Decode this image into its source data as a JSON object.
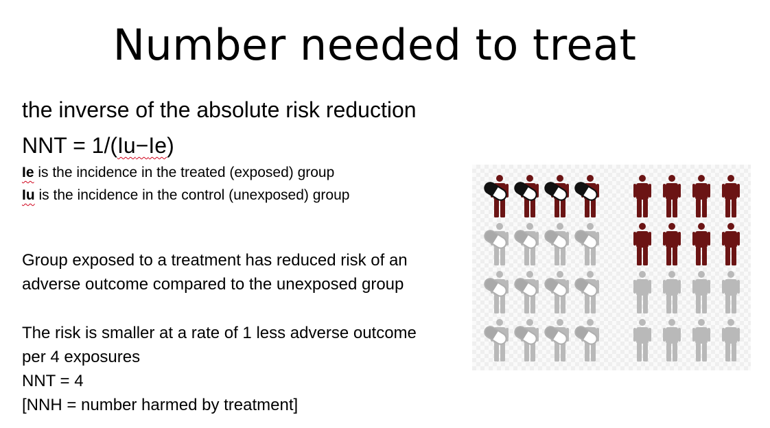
{
  "slide": {
    "title": "Number needed to treat",
    "definition": "the inverse of the absolute risk reduction",
    "formula": {
      "prefix": "NNT = 1/(",
      "iu": "Iu",
      "minus": "−",
      "ie": "Ie",
      "suffix": ")"
    },
    "variables": {
      "ie_key": "Ie",
      "ie_text": " is the incidence in the treated (exposed) group",
      "iu_key": "Iu",
      "iu_text": " is the incidence in the control (unexposed) group"
    },
    "paragraph1": {
      "line1": "Group exposed to a treatment  has reduced risk of an",
      "line2": "adverse outcome compared to the unexposed group"
    },
    "paragraph2": {
      "line1": "The risk is smaller at a rate of 1 less adverse outcome",
      "line2": "per 4 exposures",
      "line3": "NNT = 4",
      "line4": "[NNH = number harmed by treatment]"
    }
  },
  "pictogram": {
    "rows": 4,
    "treated_group": {
      "figures_per_row": 4,
      "adverse_outcome_rows": 1,
      "icon": "person-with-pill-icon"
    },
    "control_group": {
      "figures_per_row": 4,
      "adverse_outcome_rows": 2,
      "icon": "person-icon"
    },
    "colors": {
      "treated_adverse": "#6b1414",
      "control_adverse": "#6b1414",
      "no_outcome": "#b9b9b9",
      "pill_dark": "#111111",
      "pill_light": "#ffffff"
    }
  }
}
